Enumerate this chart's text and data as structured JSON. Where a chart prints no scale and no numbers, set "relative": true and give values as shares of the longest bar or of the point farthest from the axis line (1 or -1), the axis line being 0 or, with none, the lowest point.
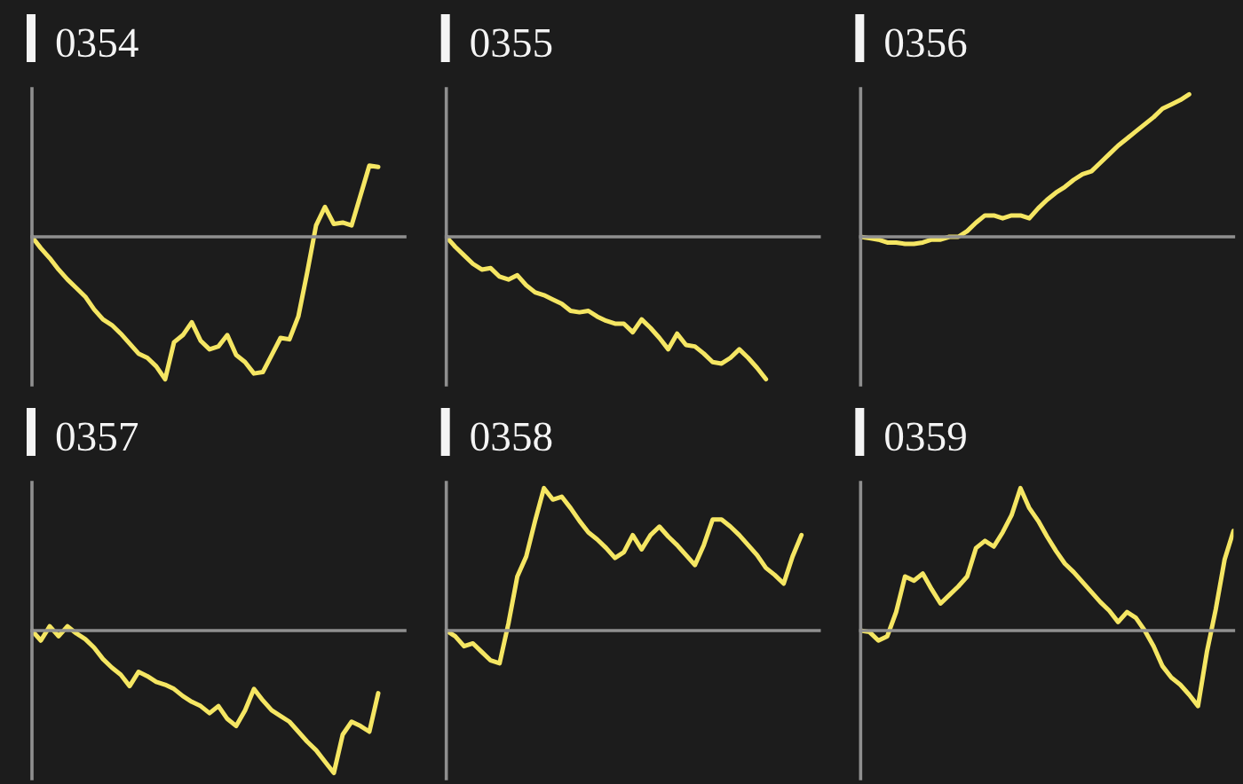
{
  "chart_data": [
    {
      "type": "line",
      "title": "0354",
      "relative": true,
      "categories": [
        null,
        null,
        null,
        null,
        null,
        null,
        null,
        null,
        null,
        null,
        null,
        null,
        null,
        null,
        null,
        null,
        null,
        null,
        null,
        null,
        null,
        null,
        null,
        null,
        null,
        null,
        null,
        null,
        null,
        null,
        null,
        null,
        null,
        null,
        null,
        null,
        null,
        null,
        null,
        null,
        null,
        null,
        null
      ],
      "series": [
        {
          "color": "#f5e663",
          "values": [
            0,
            -0.08,
            -0.15,
            -0.23,
            -0.3,
            -0.36,
            -0.42,
            -0.51,
            -0.58,
            -0.62,
            -0.68,
            -0.75,
            -0.82,
            -0.85,
            -0.91,
            -1,
            -0.74,
            -0.69,
            -0.6,
            -0.73,
            -0.79,
            -0.77,
            -0.69,
            -0.83,
            -0.88,
            -0.96,
            -0.95,
            -0.83,
            -0.71,
            -0.72,
            -0.56,
            -0.25,
            0.08,
            0.21,
            0.09,
            0.1,
            0.08,
            0.29,
            0.5,
            0.49,
            null,
            null,
            null
          ]
        }
      ]
    },
    {
      "type": "line",
      "title": "0355",
      "relative": true,
      "categories": [
        null,
        null,
        null,
        null,
        null,
        null,
        null,
        null,
        null,
        null,
        null,
        null,
        null,
        null,
        null,
        null,
        null,
        null,
        null,
        null,
        null,
        null,
        null,
        null,
        null,
        null,
        null,
        null,
        null,
        null,
        null,
        null,
        null,
        null,
        null,
        null,
        null,
        null,
        null,
        null,
        null,
        null,
        null
      ],
      "series": [
        {
          "color": "#f5e663",
          "values": [
            0,
            -0.07,
            -0.13,
            -0.19,
            -0.23,
            -0.22,
            -0.28,
            -0.3,
            -0.27,
            -0.34,
            -0.39,
            -0.41,
            -0.44,
            -0.47,
            -0.52,
            -0.53,
            -0.52,
            -0.56,
            -0.59,
            -0.61,
            -0.61,
            -0.67,
            -0.58,
            -0.64,
            -0.71,
            -0.79,
            -0.68,
            -0.76,
            -0.77,
            -0.82,
            -0.88,
            -0.89,
            -0.85,
            -0.79,
            -0.85,
            -0.92,
            -1,
            null,
            null,
            null,
            null,
            null,
            null
          ]
        }
      ]
    },
    {
      "type": "line",
      "title": "0356",
      "relative": true,
      "categories": [
        null,
        null,
        null,
        null,
        null,
        null,
        null,
        null,
        null,
        null,
        null,
        null,
        null,
        null,
        null,
        null,
        null,
        null,
        null,
        null,
        null,
        null,
        null,
        null,
        null,
        null,
        null,
        null,
        null,
        null,
        null,
        null,
        null,
        null,
        null,
        null,
        null,
        null,
        null,
        null,
        null,
        null,
        null
      ],
      "series": [
        {
          "color": "#f5e663",
          "values": [
            0,
            -0.01,
            -0.02,
            -0.04,
            -0.04,
            -0.05,
            -0.05,
            -0.04,
            -0.02,
            -0.02,
            0,
            0,
            0.04,
            0.1,
            0.15,
            0.15,
            0.13,
            0.15,
            0.15,
            0.13,
            0.2,
            0.26,
            0.31,
            0.35,
            0.4,
            0.44,
            0.46,
            0.52,
            0.58,
            0.64,
            0.69,
            0.74,
            0.79,
            0.84,
            0.9,
            0.93,
            0.96,
            1,
            null,
            null,
            null,
            null,
            null
          ]
        }
      ]
    },
    {
      "type": "line",
      "title": "0357",
      "relative": true,
      "categories": [
        null,
        null,
        null,
        null,
        null,
        null,
        null,
        null,
        null,
        null,
        null,
        null,
        null,
        null,
        null,
        null,
        null,
        null,
        null,
        null,
        null,
        null,
        null,
        null,
        null,
        null,
        null,
        null,
        null,
        null,
        null,
        null,
        null,
        null,
        null,
        null,
        null,
        null,
        null,
        null,
        null,
        null,
        null
      ],
      "series": [
        {
          "color": "#f5e663",
          "values": [
            0,
            -0.07,
            0.03,
            -0.04,
            0.03,
            -0.02,
            -0.06,
            -0.12,
            -0.2,
            -0.26,
            -0.31,
            -0.39,
            -0.29,
            -0.32,
            -0.36,
            -0.38,
            -0.41,
            -0.46,
            -0.5,
            -0.53,
            -0.58,
            -0.53,
            -0.62,
            -0.67,
            -0.56,
            -0.41,
            -0.49,
            -0.56,
            -0.6,
            -0.64,
            -0.71,
            -0.78,
            -0.84,
            -0.92,
            -1,
            -0.73,
            -0.64,
            -0.67,
            -0.71,
            -0.44,
            null,
            null,
            null
          ]
        }
      ]
    },
    {
      "type": "line",
      "title": "0358",
      "relative": true,
      "categories": [
        null,
        null,
        null,
        null,
        null,
        null,
        null,
        null,
        null,
        null,
        null,
        null,
        null,
        null,
        null,
        null,
        null,
        null,
        null,
        null,
        null,
        null,
        null,
        null,
        null,
        null,
        null,
        null,
        null,
        null,
        null,
        null,
        null,
        null,
        null,
        null,
        null,
        null,
        null,
        null,
        null,
        null,
        null
      ],
      "series": [
        {
          "color": "#f5e663",
          "values": [
            0,
            -0.04,
            -0.11,
            -0.09,
            -0.15,
            -0.21,
            -0.23,
            0.05,
            0.38,
            0.52,
            0.77,
            1,
            0.92,
            0.94,
            0.86,
            0.77,
            0.69,
            0.64,
            0.58,
            0.51,
            0.55,
            0.67,
            0.57,
            0.67,
            0.73,
            0.66,
            0.6,
            0.53,
            0.46,
            0.6,
            0.78,
            0.78,
            0.73,
            0.67,
            0.6,
            0.53,
            0.44,
            0.39,
            0.33,
            0.52,
            0.67,
            null,
            null
          ]
        }
      ]
    },
    {
      "type": "line",
      "title": "0359",
      "relative": true,
      "categories": [
        null,
        null,
        null,
        null,
        null,
        null,
        null,
        null,
        null,
        null,
        null,
        null,
        null,
        null,
        null,
        null,
        null,
        null,
        null,
        null,
        null,
        null,
        null,
        null,
        null,
        null,
        null,
        null,
        null,
        null,
        null,
        null,
        null,
        null,
        null,
        null,
        null,
        null,
        null,
        null,
        null,
        null,
        null
      ],
      "series": [
        {
          "color": "#f5e663",
          "values": [
            0,
            -0.01,
            -0.07,
            -0.04,
            0.13,
            0.38,
            0.35,
            0.4,
            0.29,
            0.19,
            0.25,
            0.31,
            0.38,
            0.58,
            0.63,
            0.59,
            0.69,
            0.81,
            1,
            0.86,
            0.77,
            0.66,
            0.56,
            0.47,
            0.41,
            0.34,
            0.27,
            0.2,
            0.14,
            0.06,
            0.13,
            0.09,
            0,
            -0.11,
            -0.25,
            -0.33,
            -0.38,
            -0.45,
            -0.53,
            -0.15,
            0.15,
            0.5,
            0.7
          ]
        }
      ]
    }
  ]
}
